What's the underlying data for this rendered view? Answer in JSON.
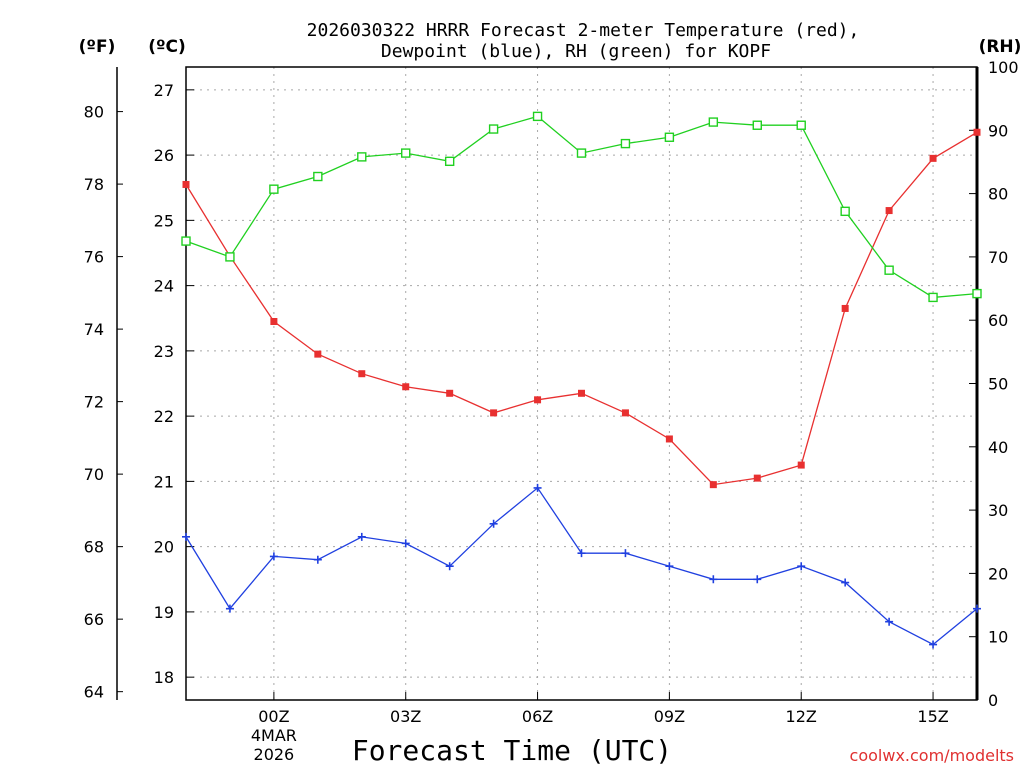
{
  "chart_data": {
    "type": "line",
    "title_line1": "2026030322 HRRR Forecast 2-meter Temperature (red),",
    "title_line2": "Dewpoint (blue), RH (green) for KOPF",
    "xlabel": "Forecast Time (UTC)",
    "credit": "coolwx.com/modelts",
    "units": {
      "fahrenheit": "(ºF)",
      "celsius": "(ºC)",
      "rh": "(RH)"
    },
    "x_hours": [
      -2,
      -1,
      0,
      1,
      2,
      3,
      4,
      5,
      6,
      7,
      8,
      9,
      10,
      11,
      12,
      13,
      14,
      15,
      16
    ],
    "xlim": [
      -2,
      16
    ],
    "x_ticks": [
      {
        "hour": 0,
        "label": "00Z"
      },
      {
        "hour": 3,
        "label": "03Z"
      },
      {
        "hour": 6,
        "label": "06Z"
      },
      {
        "hour": 9,
        "label": "09Z"
      },
      {
        "hour": 12,
        "label": "12Z"
      },
      {
        "hour": 15,
        "label": "15Z"
      }
    ],
    "date_label": {
      "day": "4MAR",
      "year": "2026"
    },
    "celsius_axis": {
      "ylim": [
        17.65,
        27.35
      ],
      "ticks": [
        "18",
        "19",
        "20",
        "21",
        "22",
        "23",
        "24",
        "25",
        "26",
        "27"
      ]
    },
    "fahrenheit_axis": {
      "ylim": [
        63.77,
        81.23
      ],
      "ticks": [
        "64",
        "66",
        "68",
        "70",
        "72",
        "74",
        "76",
        "78",
        "80"
      ]
    },
    "rh_axis": {
      "ylim": [
        0,
        100
      ],
      "ticks": [
        "0",
        "10",
        "20",
        "30",
        "40",
        "50",
        "60",
        "70",
        "80",
        "90",
        "100"
      ]
    },
    "series": [
      {
        "name": "Temperature",
        "color": "#e83030",
        "axis": "celsius",
        "marker": "filled-square",
        "values": [
          25.55,
          24.45,
          23.45,
          22.95,
          22.65,
          22.45,
          22.35,
          22.05,
          22.25,
          22.35,
          22.05,
          21.65,
          20.95,
          21.05,
          21.25,
          23.65,
          25.15,
          25.95,
          26.35
        ]
      },
      {
        "name": "Dewpoint",
        "color": "#2040e0",
        "axis": "celsius",
        "marker": "plus",
        "values": [
          20.15,
          19.05,
          19.85,
          19.8,
          20.15,
          20.05,
          19.7,
          20.35,
          20.9,
          19.9,
          19.9,
          19.7,
          19.5,
          19.5,
          19.7,
          19.45,
          18.85,
          18.5,
          19.05
        ]
      },
      {
        "name": "RH",
        "color": "#20d020",
        "axis": "rh",
        "marker": "open-square",
        "values": [
          72.5,
          70,
          80.7,
          82.7,
          85.8,
          86.4,
          85.1,
          90.2,
          92.2,
          86.4,
          87.9,
          88.9,
          91.3,
          90.8,
          90.8,
          77.2,
          67.9,
          63.6,
          64.2
        ]
      }
    ]
  }
}
